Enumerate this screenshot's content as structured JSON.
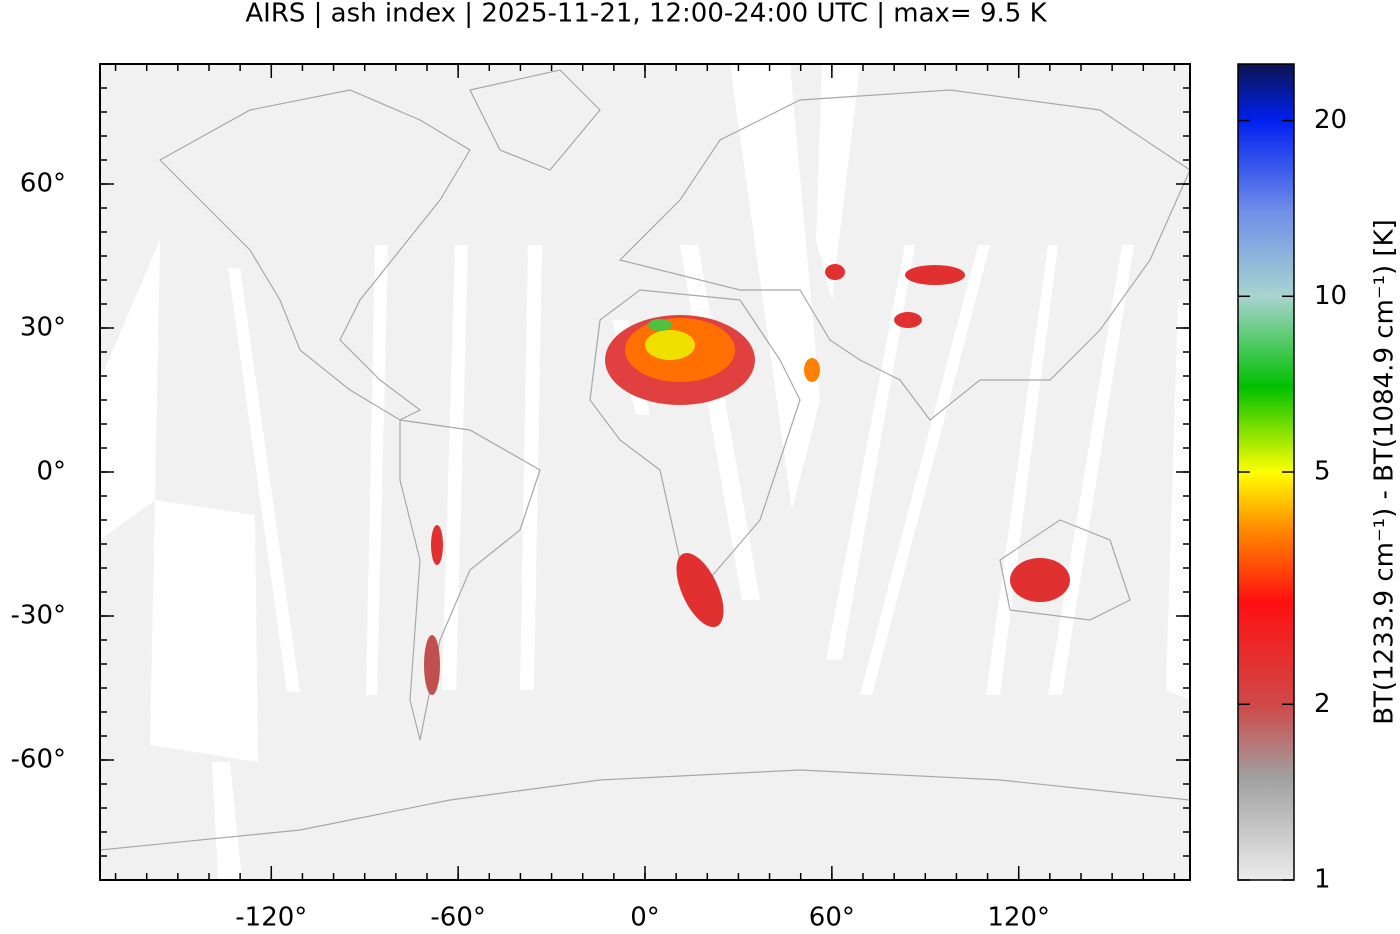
{
  "chart_data": {
    "type": "map",
    "title": "AIRS | ash index | 2025-11-21, 12:00-24:00 UTC | max= 9.5 K",
    "xlim": [
      -175,
      175
    ],
    "ylim": [
      -85,
      85
    ],
    "xticks": [
      {
        "value": -120,
        "label": "-120°"
      },
      {
        "value": -60,
        "label": "-60°"
      },
      {
        "value": 0,
        "label": "0°"
      },
      {
        "value": 60,
        "label": "60°"
      },
      {
        "value": 120,
        "label": "120°"
      }
    ],
    "yticks": [
      {
        "value": -60,
        "label": "-60°"
      },
      {
        "value": -30,
        "label": "-30°"
      },
      {
        "value": 0,
        "label": "0°"
      },
      {
        "value": 30,
        "label": "30°"
      },
      {
        "value": 60,
        "label": "60°"
      }
    ],
    "colorbar": {
      "label": "BT(1233.9 cm⁻¹) - BT(1084.9 cm⁻¹) [K]",
      "lim": [
        1,
        25
      ],
      "log": true,
      "ticks": [
        1,
        2,
        5,
        10,
        20
      ],
      "colormap": [
        {
          "value": 1,
          "color": "#ececec"
        },
        {
          "value": 1.5,
          "color": "#a0a0a0"
        },
        {
          "value": 2,
          "color": "#d04848"
        },
        {
          "value": 3,
          "color": "#ff1010"
        },
        {
          "value": 4,
          "color": "#ff8c00"
        },
        {
          "value": 5,
          "color": "#ffff00"
        },
        {
          "value": 7,
          "color": "#00c000"
        },
        {
          "value": 10,
          "color": "#a8d4d0"
        },
        {
          "value": 14,
          "color": "#6f8ee8"
        },
        {
          "value": 20,
          "color": "#0020f0"
        },
        {
          "value": 25,
          "color": "#0c1450"
        }
      ]
    }
  }
}
